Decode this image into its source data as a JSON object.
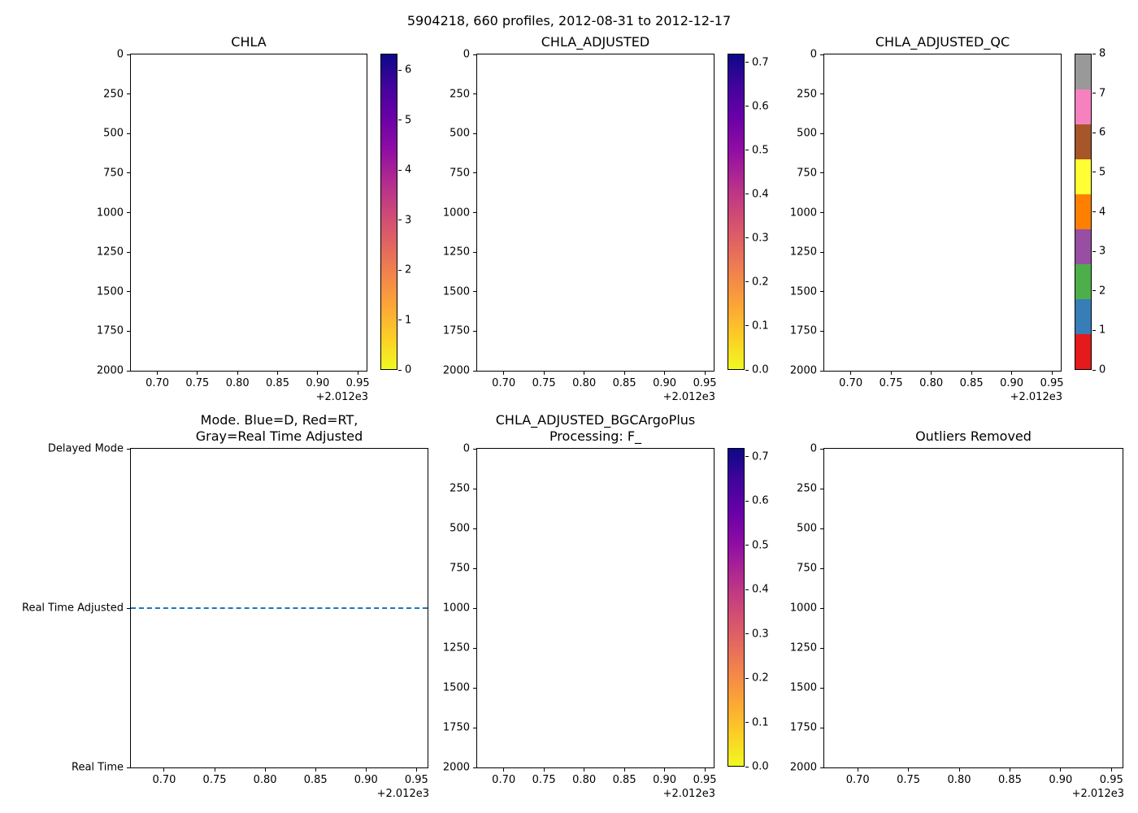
{
  "figure": {
    "title": "5904218, 660 profiles, 2012-08-31 to 2012-12-17"
  },
  "colors": {
    "axes_edge": "#000000",
    "mode_line_blue": "#1f77b4",
    "plasma_r_stops_bottom_to_top": [
      "#f0f921",
      "#fcce25",
      "#fca636",
      "#f2844b",
      "#e16462",
      "#cc4778",
      "#b12a90",
      "#8f0da4",
      "#6a00a8",
      "#41049d",
      "#0d0887"
    ],
    "qc_set1_colors_bottom_to_top": [
      "#e41a1c",
      "#377eb8",
      "#4daf4a",
      "#984ea3",
      "#ff7f00",
      "#ffff33",
      "#a65628",
      "#f781bf",
      "#999999"
    ]
  },
  "chart_data": [
    {
      "id": "chla",
      "type": "scatter",
      "title": "CHLA",
      "x_offset_label": "+2.012e3",
      "xlim": [
        0.667,
        0.961
      ],
      "xticks": [
        0.7,
        0.75,
        0.8,
        0.85,
        0.9,
        0.95
      ],
      "xtick_labels": [
        "0.70",
        "0.75",
        "0.80",
        "0.85",
        "0.90",
        "0.95"
      ],
      "ylim": [
        0,
        2000
      ],
      "y_inverted": true,
      "yticks": [
        0,
        250,
        500,
        750,
        1000,
        1250,
        1500,
        1750,
        2000
      ],
      "ytick_labels": [
        "0",
        "250",
        "500",
        "750",
        "1000",
        "1250",
        "1500",
        "1750",
        "2000"
      ],
      "points": [],
      "colorbar": {
        "cmap": "plasma_r",
        "cmin": 0,
        "cmax": 6.33,
        "ticks": [
          0,
          1,
          2,
          3,
          4,
          5,
          6
        ],
        "tick_labels": [
          "0",
          "1",
          "2",
          "3",
          "4",
          "5",
          "6"
        ]
      }
    },
    {
      "id": "chla_adjusted",
      "type": "scatter",
      "title": "CHLA_ADJUSTED",
      "x_offset_label": "+2.012e3",
      "xlim": [
        0.667,
        0.961
      ],
      "xticks": [
        0.7,
        0.75,
        0.8,
        0.85,
        0.9,
        0.95
      ],
      "xtick_labels": [
        "0.70",
        "0.75",
        "0.80",
        "0.85",
        "0.90",
        "0.95"
      ],
      "ylim": [
        0,
        2000
      ],
      "y_inverted": true,
      "yticks": [
        0,
        250,
        500,
        750,
        1000,
        1250,
        1500,
        1750,
        2000
      ],
      "ytick_labels": [
        "0",
        "250",
        "500",
        "750",
        "1000",
        "1250",
        "1500",
        "1750",
        "2000"
      ],
      "points": [],
      "colorbar": {
        "cmap": "plasma_r",
        "cmin": 0,
        "cmax": 0.72,
        "ticks": [
          0,
          0.1,
          0.2,
          0.3,
          0.4,
          0.5,
          0.6,
          0.7
        ],
        "tick_labels": [
          "0.0",
          "0.1",
          "0.2",
          "0.3",
          "0.4",
          "0.5",
          "0.6",
          "0.7"
        ]
      }
    },
    {
      "id": "chla_adjusted_qc",
      "type": "scatter",
      "title": "CHLA_ADJUSTED_QC",
      "x_offset_label": "+2.012e3",
      "xlim": [
        0.667,
        0.961
      ],
      "xticks": [
        0.7,
        0.75,
        0.8,
        0.85,
        0.9,
        0.95
      ],
      "xtick_labels": [
        "0.70",
        "0.75",
        "0.80",
        "0.85",
        "0.90",
        "0.95"
      ],
      "ylim": [
        0,
        2000
      ],
      "y_inverted": true,
      "yticks": [
        0,
        250,
        500,
        750,
        1000,
        1250,
        1500,
        1750,
        2000
      ],
      "ytick_labels": [
        "0",
        "250",
        "500",
        "750",
        "1000",
        "1250",
        "1500",
        "1750",
        "2000"
      ],
      "points": [],
      "colorbar": {
        "cmap": "qc_discrete",
        "cmin": 0,
        "cmax": 8,
        "ticks": [
          0,
          1,
          2,
          3,
          4,
          5,
          6,
          7,
          8
        ],
        "tick_labels": [
          "0",
          "1",
          "2",
          "3",
          "4",
          "5",
          "6",
          "7",
          "8"
        ]
      }
    },
    {
      "id": "mode",
      "type": "line",
      "title_lines": [
        "Mode. Blue=D, Red=RT,",
        "Gray=Real Time Adjusted"
      ],
      "x_offset_label": "+2.012e3",
      "xlim": [
        0.667,
        0.961
      ],
      "xticks": [
        0.7,
        0.75,
        0.8,
        0.85,
        0.9,
        0.95
      ],
      "xtick_labels": [
        "0.70",
        "0.75",
        "0.80",
        "0.85",
        "0.90",
        "0.95"
      ],
      "ytick_labels": [
        "Delayed Mode",
        "Real Time Adjusted",
        "Real Time"
      ],
      "series": [
        {
          "name": "mode-history",
          "y_value": "Real Time Adjusted",
          "color": "#1f77b4",
          "linestyle": "dashed"
        }
      ]
    },
    {
      "id": "bgc",
      "type": "scatter",
      "title_lines": [
        "CHLA_ADJUSTED_BGCArgoPlus",
        "Processing: F_"
      ],
      "x_offset_label": "+2.012e3",
      "xlim": [
        0.667,
        0.961
      ],
      "xticks": [
        0.7,
        0.75,
        0.8,
        0.85,
        0.9,
        0.95
      ],
      "xtick_labels": [
        "0.70",
        "0.75",
        "0.80",
        "0.85",
        "0.90",
        "0.95"
      ],
      "ylim": [
        0,
        2000
      ],
      "y_inverted": true,
      "yticks": [
        0,
        250,
        500,
        750,
        1000,
        1250,
        1500,
        1750,
        2000
      ],
      "ytick_labels": [
        "0",
        "250",
        "500",
        "750",
        "1000",
        "1250",
        "1500",
        "1750",
        "2000"
      ],
      "points": [],
      "colorbar": {
        "cmap": "plasma_r",
        "cmin": 0,
        "cmax": 0.72,
        "ticks": [
          0,
          0.1,
          0.2,
          0.3,
          0.4,
          0.5,
          0.6,
          0.7
        ],
        "tick_labels": [
          "0.0",
          "0.1",
          "0.2",
          "0.3",
          "0.4",
          "0.5",
          "0.6",
          "0.7"
        ]
      }
    },
    {
      "id": "outliers",
      "type": "scatter",
      "title": "Outliers Removed",
      "x_offset_label": "+2.012e3",
      "xlim": [
        0.667,
        0.961
      ],
      "xticks": [
        0.7,
        0.75,
        0.8,
        0.85,
        0.9,
        0.95
      ],
      "xtick_labels": [
        "0.70",
        "0.75",
        "0.80",
        "0.85",
        "0.90",
        "0.95"
      ],
      "ylim": [
        0,
        2000
      ],
      "y_inverted": true,
      "yticks": [
        0,
        250,
        500,
        750,
        1000,
        1250,
        1500,
        1750,
        2000
      ],
      "ytick_labels": [
        "0",
        "250",
        "500",
        "750",
        "1000",
        "1250",
        "1500",
        "1750",
        "2000"
      ],
      "points": []
    }
  ]
}
